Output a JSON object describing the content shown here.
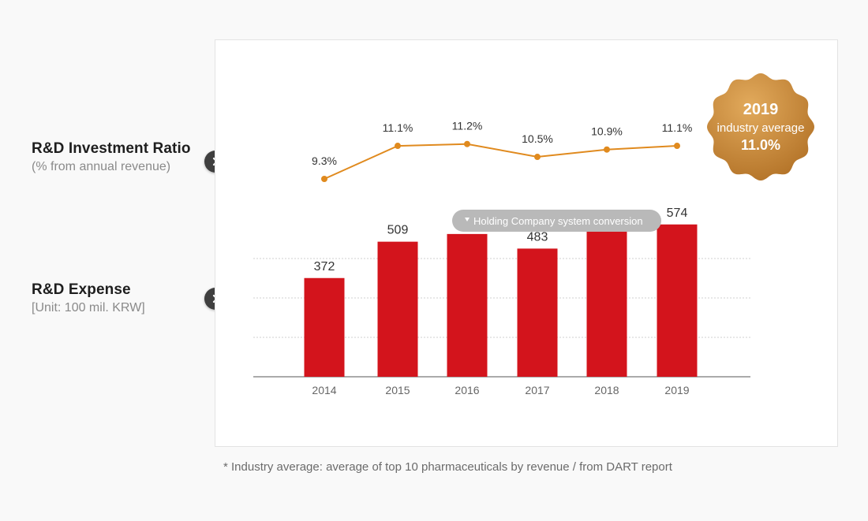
{
  "left_labels": {
    "ratio": {
      "title": "R&D Investment Ratio",
      "subtitle": "(% from annual revenue)"
    },
    "expense": {
      "title": "R&D Expense",
      "subtitle": "[Unit: 100 mil. KRW]"
    }
  },
  "badge": {
    "year": "2019",
    "label": "industry average",
    "value": "11.0%"
  },
  "conversion_note": "Holding Company system conversion",
  "footnote": "* Industry average: average of top 10 pharmaceuticals by revenue / from DART report",
  "colors": {
    "bar": "#d3141c",
    "line": "#e08a1e",
    "badge_light": "#dba04f",
    "badge_dark": "#b97529",
    "pill": "#b9b9b9"
  },
  "chart_data": [
    {
      "type": "line",
      "title": "R&D Investment Ratio",
      "categories": [
        "2014",
        "2015",
        "2016",
        "2017",
        "2018",
        "2019"
      ],
      "values": [
        9.3,
        11.1,
        11.2,
        10.5,
        10.9,
        11.1
      ],
      "labels": [
        "9.3%",
        "11.1%",
        "11.2%",
        "10.5%",
        "10.9%",
        "11.1%"
      ],
      "unit": "%",
      "ylim": [
        9,
        12
      ]
    },
    {
      "type": "bar",
      "title": "R&D Expense",
      "categories": [
        "2014",
        "2015",
        "2016",
        "2017",
        "2018",
        "2019"
      ],
      "values": [
        372,
        509,
        538,
        483,
        547,
        574
      ],
      "unit": "100 mil. KRW",
      "ylim": [
        0,
        600
      ],
      "grid": true
    }
  ]
}
